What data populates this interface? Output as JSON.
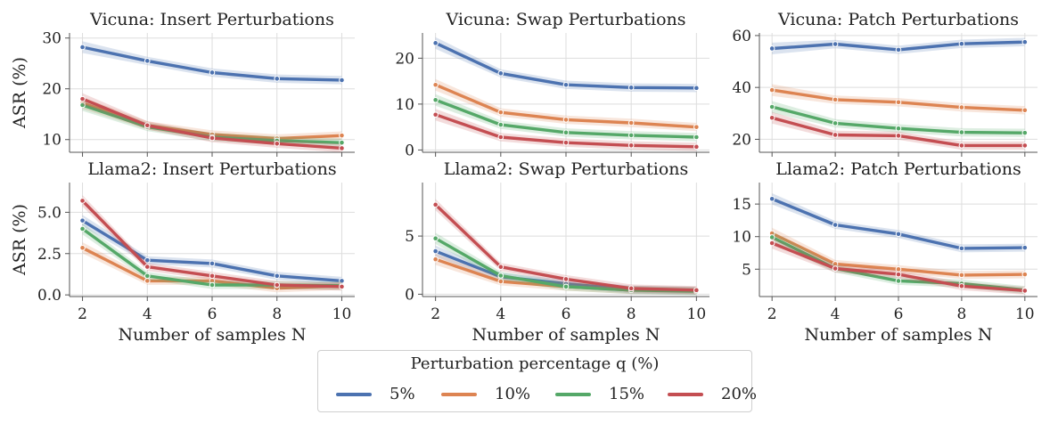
{
  "chart_data": [
    {
      "type": "line",
      "title": "Vicuna: Insert Perturbations",
      "xlabel": "",
      "ylabel": "ASR (%)",
      "x": [
        2,
        4,
        6,
        8,
        10
      ],
      "ylim": [
        7.5,
        31
      ],
      "yticks": [
        10,
        20,
        30
      ],
      "grid": true,
      "series": [
        {
          "name": "5%",
          "values": [
            28.2,
            25.5,
            23.2,
            22.0,
            21.7
          ]
        },
        {
          "name": "10%",
          "values": [
            17.2,
            12.8,
            11.0,
            10.2,
            10.8
          ]
        },
        {
          "name": "15%",
          "values": [
            16.8,
            12.5,
            10.5,
            9.8,
            9.4
          ]
        },
        {
          "name": "20%",
          "values": [
            18.0,
            12.8,
            10.3,
            9.2,
            8.3
          ]
        }
      ]
    },
    {
      "type": "line",
      "title": "Vicuna: Swap Perturbations",
      "xlabel": "",
      "ylabel": "",
      "x": [
        2,
        4,
        6,
        8,
        10
      ],
      "ylim": [
        -0.5,
        25.5
      ],
      "yticks": [
        0,
        10,
        20
      ],
      "grid": true,
      "series": [
        {
          "name": "5%",
          "values": [
            23.3,
            16.7,
            14.2,
            13.6,
            13.5
          ]
        },
        {
          "name": "10%",
          "values": [
            14.2,
            8.2,
            6.6,
            5.9,
            5.0
          ]
        },
        {
          "name": "15%",
          "values": [
            10.9,
            5.5,
            3.8,
            3.2,
            2.8
          ]
        },
        {
          "name": "20%",
          "values": [
            7.7,
            2.8,
            1.6,
            1.0,
            0.7
          ]
        }
      ]
    },
    {
      "type": "line",
      "title": "Vicuna: Patch Perturbations",
      "xlabel": "",
      "ylabel": "",
      "x": [
        2,
        4,
        6,
        8,
        10
      ],
      "ylim": [
        15,
        61
      ],
      "yticks": [
        20,
        40,
        60
      ],
      "grid": true,
      "series": [
        {
          "name": "5%",
          "values": [
            55.0,
            56.7,
            54.5,
            56.8,
            57.5
          ]
        },
        {
          "name": "10%",
          "values": [
            39.0,
            35.3,
            34.3,
            32.3,
            31.2
          ]
        },
        {
          "name": "15%",
          "values": [
            32.5,
            26.2,
            24.2,
            22.7,
            22.5
          ]
        },
        {
          "name": "20%",
          "values": [
            28.3,
            21.7,
            21.4,
            17.6,
            17.6
          ]
        }
      ]
    },
    {
      "type": "line",
      "title": "Llama2: Insert Perturbations",
      "xlabel": "Number of samples N",
      "ylabel": "ASR (%)",
      "x": [
        2,
        4,
        6,
        8,
        10
      ],
      "ylim": [
        -0.1,
        6.8
      ],
      "yticks": [
        0.0,
        2.5,
        5.0
      ],
      "grid": true,
      "series": [
        {
          "name": "5%",
          "values": [
            4.5,
            2.1,
            1.9,
            1.15,
            0.85
          ]
        },
        {
          "name": "10%",
          "values": [
            2.85,
            0.85,
            0.85,
            0.4,
            0.55
          ]
        },
        {
          "name": "15%",
          "values": [
            4.0,
            1.15,
            0.6,
            0.6,
            0.55
          ]
        },
        {
          "name": "20%",
          "values": [
            5.7,
            1.7,
            1.15,
            0.6,
            0.5
          ]
        }
      ]
    },
    {
      "type": "line",
      "title": "Llama2: Swap Perturbations",
      "xlabel": "Number of samples N",
      "ylabel": "",
      "x": [
        2,
        4,
        6,
        8,
        10
      ],
      "ylim": [
        -0.2,
        9.6
      ],
      "yticks": [
        0,
        5
      ],
      "grid": true,
      "series": [
        {
          "name": "5%",
          "values": [
            3.7,
            1.5,
            0.9,
            0.4,
            0.3
          ]
        },
        {
          "name": "10%",
          "values": [
            3.0,
            1.1,
            0.65,
            0.35,
            0.3
          ]
        },
        {
          "name": "15%",
          "values": [
            4.8,
            1.6,
            0.65,
            0.35,
            0.25
          ]
        },
        {
          "name": "20%",
          "values": [
            7.7,
            2.35,
            1.3,
            0.5,
            0.35
          ]
        }
      ]
    },
    {
      "type": "line",
      "title": "Llama2: Patch Perturbations",
      "xlabel": "Number of samples N",
      "ylabel": "",
      "x": [
        2,
        4,
        6,
        8,
        10
      ],
      "ylim": [
        0.8,
        18.3
      ],
      "yticks": [
        5,
        10,
        15
      ],
      "grid": true,
      "series": [
        {
          "name": "5%",
          "values": [
            15.8,
            11.8,
            10.4,
            8.2,
            8.3
          ]
        },
        {
          "name": "10%",
          "values": [
            10.5,
            5.8,
            5.0,
            4.1,
            4.2
          ]
        },
        {
          "name": "15%",
          "values": [
            9.9,
            5.1,
            3.2,
            2.8,
            1.8
          ]
        },
        {
          "name": "20%",
          "values": [
            9.0,
            5.1,
            4.2,
            2.4,
            1.7
          ]
        }
      ]
    }
  ],
  "colors": {
    "5%": "#4c72b0",
    "10%": "#dd8452",
    "15%": "#55a868",
    "20%": "#c44e52",
    "grid": "#dddddd",
    "axis": "#555555"
  },
  "legend": {
    "title": "Perturbation percentage q (%)",
    "placement": "bottom-center",
    "items": [
      "5%",
      "10%",
      "15%",
      "20%"
    ]
  },
  "xticks": [
    2,
    4,
    6,
    8,
    10
  ]
}
